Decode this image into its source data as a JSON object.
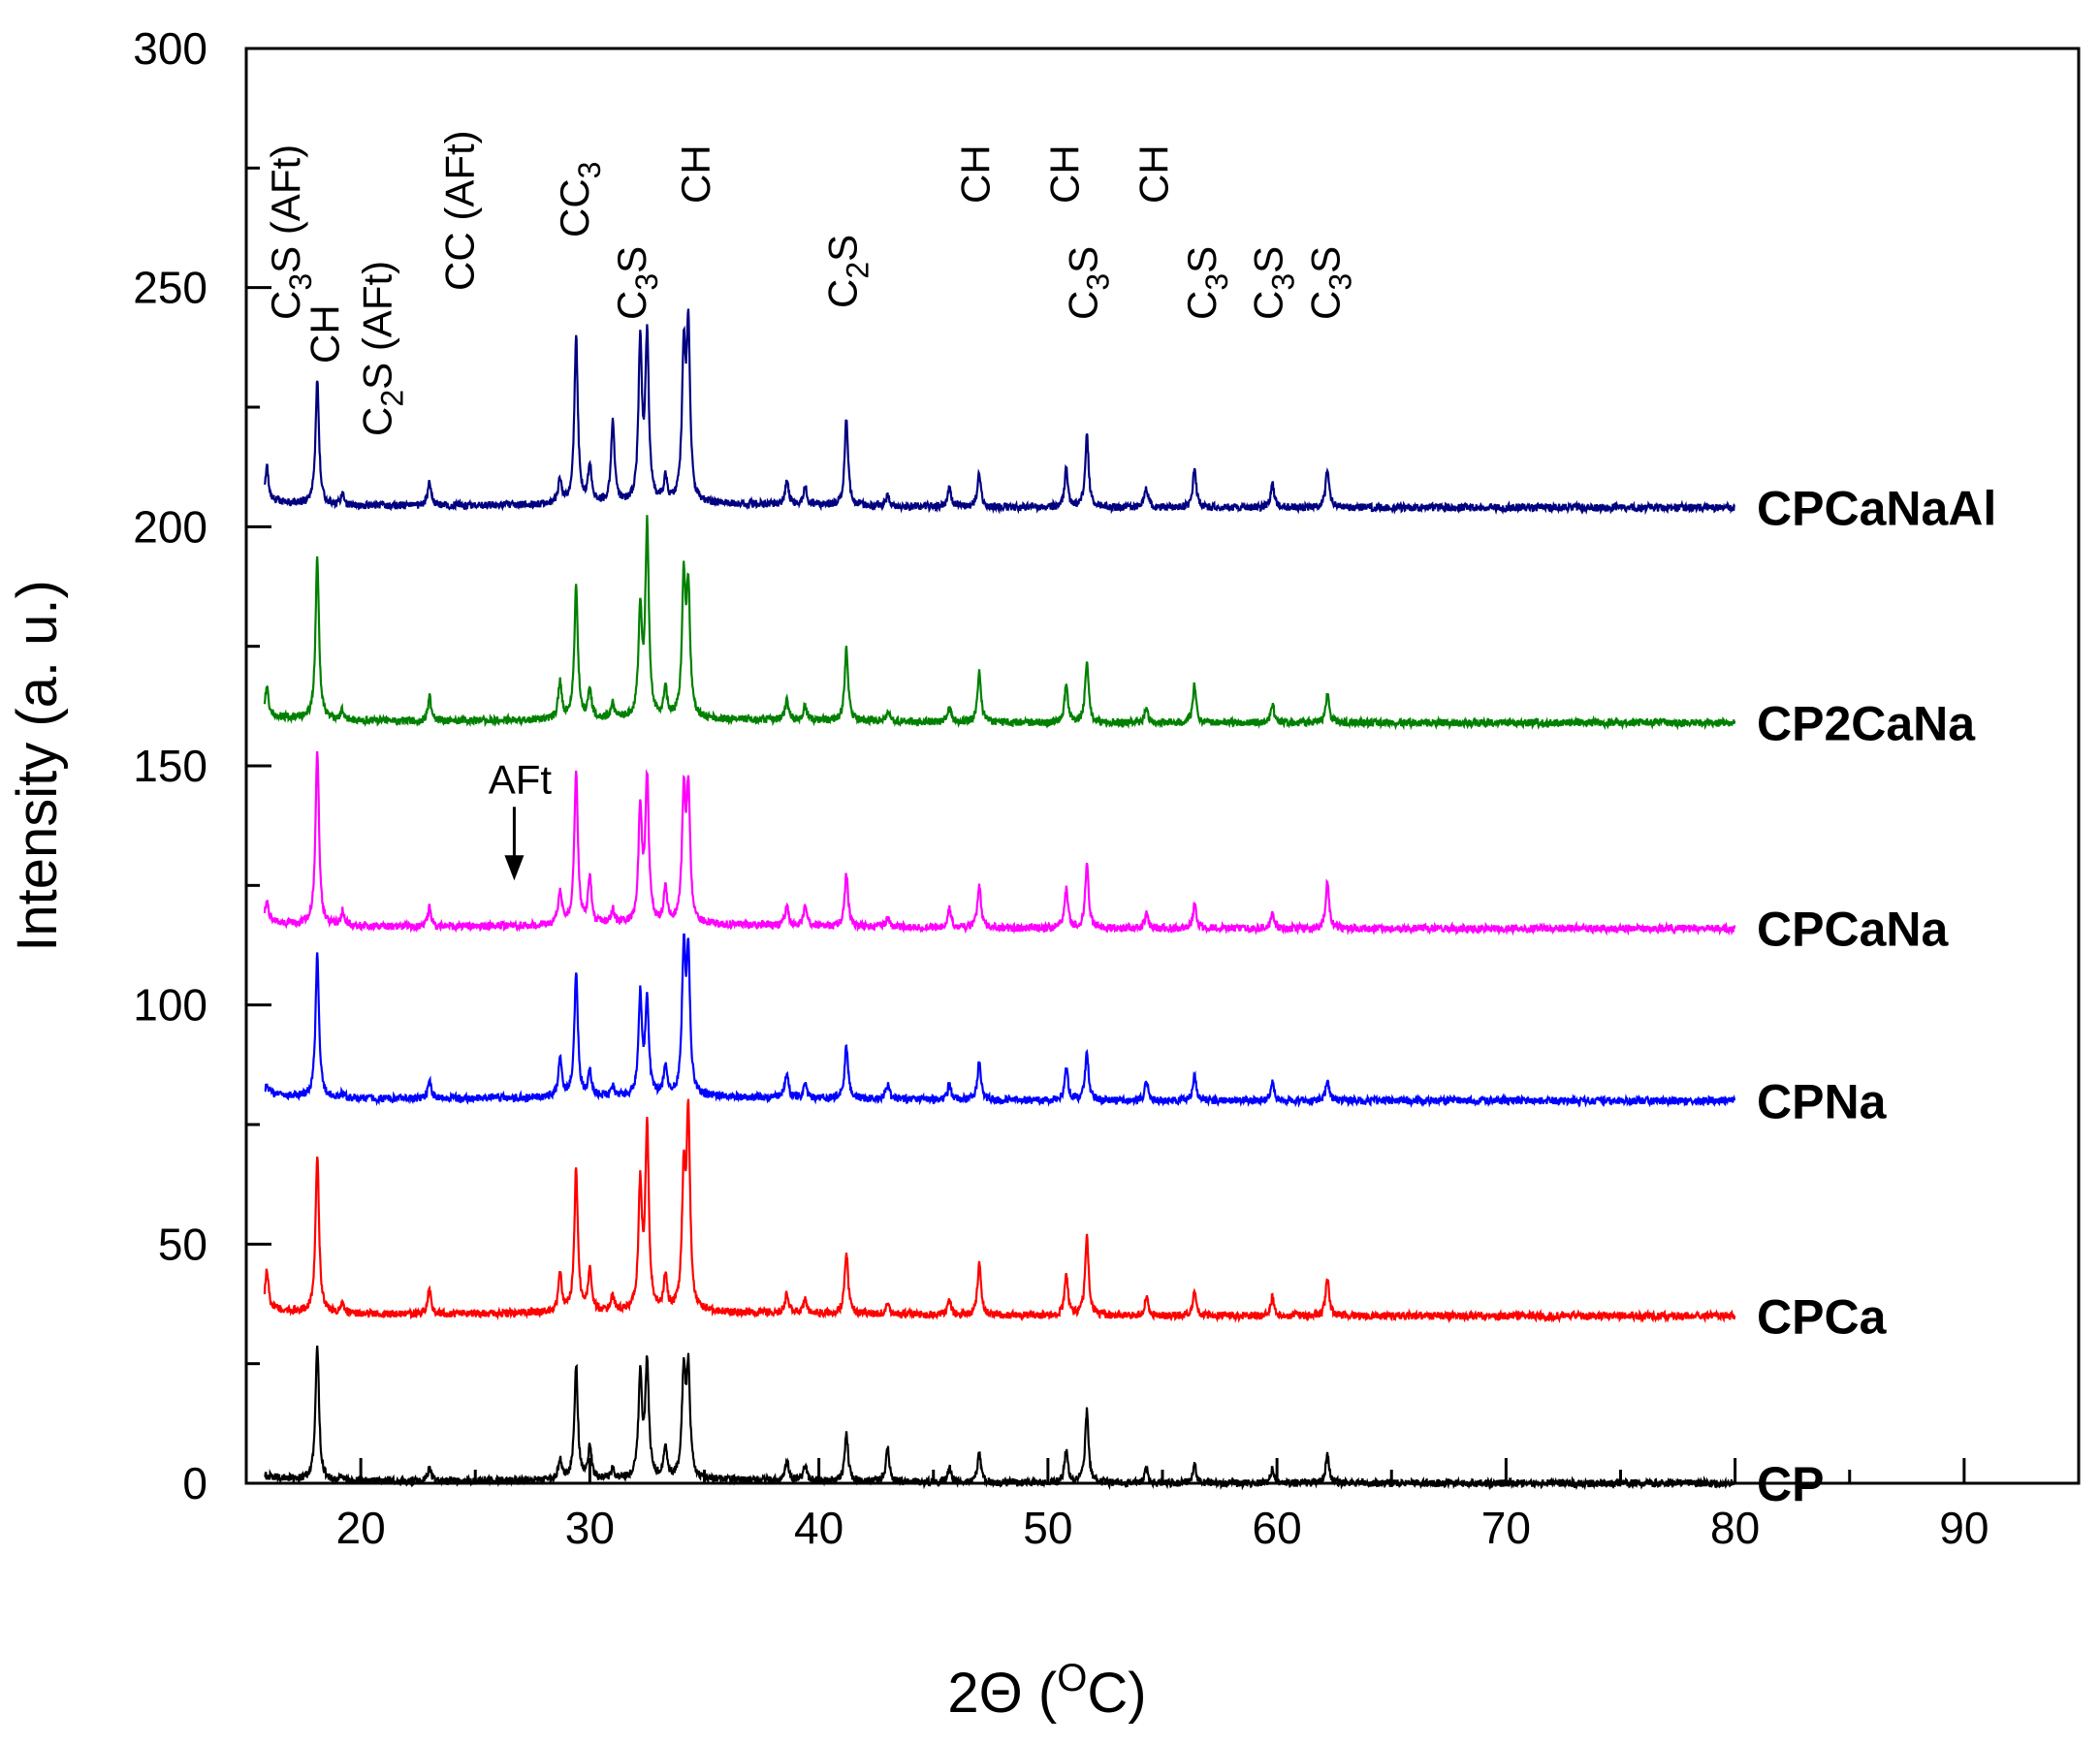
{
  "chart_data": {
    "type": "line",
    "title": "",
    "xlabel": "2Θ (°C)",
    "xlabel_parts": {
      "prefix": "2Θ (",
      "sup": "O",
      "suffix": "C)"
    },
    "ylabel": "Intensity (a. u.)",
    "xlim": [
      15,
      95
    ],
    "ylim": [
      0,
      300
    ],
    "xticks": [
      20,
      30,
      40,
      50,
      60,
      70,
      80,
      90
    ],
    "yticks": [
      0,
      50,
      100,
      150,
      200,
      250,
      300
    ],
    "x_range": [
      15.8,
      80
    ],
    "peak_positions": [
      15.9,
      18.1,
      19.2,
      23.0,
      28.7,
      29.4,
      30.0,
      31.0,
      32.2,
      32.5,
      33.3,
      34.1,
      34.3,
      38.6,
      39.4,
      41.2,
      43.0,
      45.7,
      47.0,
      50.8,
      51.7,
      54.3,
      56.4,
      59.8,
      62.2
    ],
    "series": [
      {
        "name": "CP",
        "color": "#000000",
        "baseline": 0,
        "peaks": [
          0,
          28,
          1,
          3,
          4,
          24,
          7,
          2,
          22,
          24,
          7,
          22,
          22,
          4,
          3,
          10,
          7,
          3,
          6,
          7,
          15,
          3,
          4,
          3,
          6
        ]
      },
      {
        "name": "CPCa",
        "color": "#ff0000",
        "baseline": 35,
        "peaks": [
          8,
          33,
          2,
          5,
          8,
          30,
          9,
          3,
          26,
          38,
          7,
          27,
          40,
          4,
          3,
          13,
          2,
          3,
          11,
          9,
          17,
          4,
          5,
          4,
          8
        ]
      },
      {
        "name": "CPNa",
        "color": "#0000ff",
        "baseline": 80,
        "peaks": [
          2,
          30,
          1,
          4,
          8,
          26,
          5,
          2,
          21,
          20,
          6,
          29,
          28,
          5,
          3,
          11,
          3,
          3,
          8,
          7,
          10,
          4,
          5,
          4,
          4
        ]
      },
      {
        "name": "CPCaNa",
        "color": "#ff00ff",
        "baseline": 116,
        "peaks": [
          4,
          37,
          3,
          4,
          7,
          32,
          10,
          3,
          24,
          30,
          7,
          26,
          27,
          4,
          4,
          11,
          2,
          4,
          9,
          8,
          13,
          3,
          5,
          3,
          10
        ]
      },
      {
        "name": "CP2CaNa",
        "color": "#008000",
        "baseline": 159,
        "peaks": [
          6,
          34,
          2,
          5,
          8,
          28,
          6,
          3,
          22,
          40,
          6,
          28,
          26,
          4,
          3,
          15,
          2,
          3,
          11,
          8,
          13,
          3,
          8,
          4,
          6
        ]
      },
      {
        "name": "CPCaNaAl",
        "color": "#000080",
        "baseline": 204,
        "peaks": [
          7,
          26,
          2,
          5,
          5,
          35,
          8,
          17,
          33,
          34,
          5,
          30,
          36,
          5,
          4,
          18,
          2,
          4,
          7,
          8,
          15,
          4,
          8,
          5,
          8
        ]
      }
    ],
    "annotations": [
      {
        "text": "C3S (AFt)",
        "parts": [
          [
            "C",
            ""
          ],
          [
            "3",
            "sub"
          ],
          [
            "S (AFt)",
            ""
          ]
        ],
        "x": 16.7
      },
      {
        "text": "CH",
        "parts": [
          [
            "CH",
            ""
          ]
        ],
        "x": 18.4
      },
      {
        "text": "C2S (AFt)",
        "parts": [
          [
            "C",
            ""
          ],
          [
            "2",
            "sub"
          ],
          [
            "S (AFt)",
            ""
          ]
        ],
        "x": 20.7
      },
      {
        "text": "CC (AFt)",
        "parts": [
          [
            "CC (AFt)",
            ""
          ]
        ],
        "x": 24.3
      },
      {
        "text": "CC3",
        "parts": [
          [
            "CC",
            ""
          ],
          [
            "3",
            "sub"
          ]
        ],
        "x": 29.3
      },
      {
        "text": "C3S",
        "parts": [
          [
            "C",
            ""
          ],
          [
            "3",
            "sub"
          ]
        ],
        "extra": "S",
        "x": 31.8
      },
      {
        "text": "CH",
        "parts": [
          [
            "CH",
            ""
          ]
        ],
        "x": 34.6
      },
      {
        "text": "C2S",
        "parts": [
          [
            "C",
            ""
          ],
          [
            "2",
            "sub"
          ],
          [
            "S",
            ""
          ]
        ],
        "x": 41.0
      },
      {
        "text": "CH",
        "parts": [
          [
            "CH",
            ""
          ]
        ],
        "x": 46.8
      },
      {
        "text": "CH",
        "parts": [
          [
            "CH",
            ""
          ]
        ],
        "x": 50.7
      },
      {
        "text": "C3S",
        "parts": [
          [
            "C",
            ""
          ],
          [
            "3",
            "sub"
          ],
          [
            "S",
            ""
          ]
        ],
        "x": 51.5
      },
      {
        "text": "CH",
        "parts": [
          [
            "CH",
            ""
          ]
        ],
        "x": 54.6
      },
      {
        "text": "C3S",
        "parts": [
          [
            "C",
            ""
          ],
          [
            "3",
            "sub"
          ],
          [
            "S",
            ""
          ]
        ],
        "x": 56.7
      },
      {
        "text": "C3S",
        "parts": [
          [
            "C",
            ""
          ],
          [
            "3",
            "sub"
          ],
          [
            "S",
            ""
          ]
        ],
        "x": 59.6
      },
      {
        "text": "C3S",
        "parts": [
          [
            "C",
            ""
          ],
          [
            "3",
            "sub"
          ],
          [
            "S",
            ""
          ]
        ],
        "x": 62.1
      }
    ],
    "arrow_annotation": {
      "text": "AFt",
      "x": 26.7,
      "y": 124
    }
  }
}
